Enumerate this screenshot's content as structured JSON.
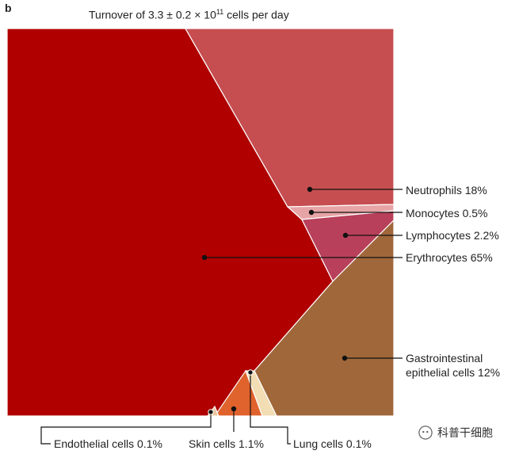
{
  "panel_letter": "b",
  "title": {
    "prefix": "Turnover of 3.3 ± 0.2 × 10",
    "superscript": "11",
    "suffix": " cells per day"
  },
  "watermark": {
    "text": "科普干细胞",
    "icon": "wechat-icon"
  },
  "chart_data": {
    "type": "voronoi-treemap",
    "title": "Turnover of 3.3 ± 0.2 × 10^11 cells per day",
    "items": [
      {
        "label": "Erythrocytes 65%",
        "name": "Erythrocytes",
        "value": 65,
        "color": "#b00000"
      },
      {
        "label": "Neutrophils 18%",
        "name": "Neutrophils",
        "value": 18,
        "color": "#c64e50"
      },
      {
        "label": "Gastrointestinal epithelial cells 12%",
        "lines": [
          "Gastrointestinal",
          "epithelial cells 12%"
        ],
        "name": "Gastrointestinal epithelial cells",
        "value": 12,
        "color": "#a0673a"
      },
      {
        "label": "Lymphocytes 2.2%",
        "name": "Lymphocytes",
        "value": 2.2,
        "color": "#b8405a"
      },
      {
        "label": "Skin cells 1.1%",
        "name": "Skin cells",
        "value": 1.1,
        "color": "#e0622c"
      },
      {
        "label": "Monocytes 0.5%",
        "name": "Monocytes",
        "value": 0.5,
        "color": "#e7a4a6"
      },
      {
        "label": "Endothelial cells 0.1%",
        "name": "Endothelial cells",
        "value": 0.1,
        "color": "#e8c7a0"
      },
      {
        "label": "Lung cells 0.1%",
        "name": "Lung cells",
        "value": 0.1,
        "color": "#f2ddb4"
      }
    ]
  }
}
